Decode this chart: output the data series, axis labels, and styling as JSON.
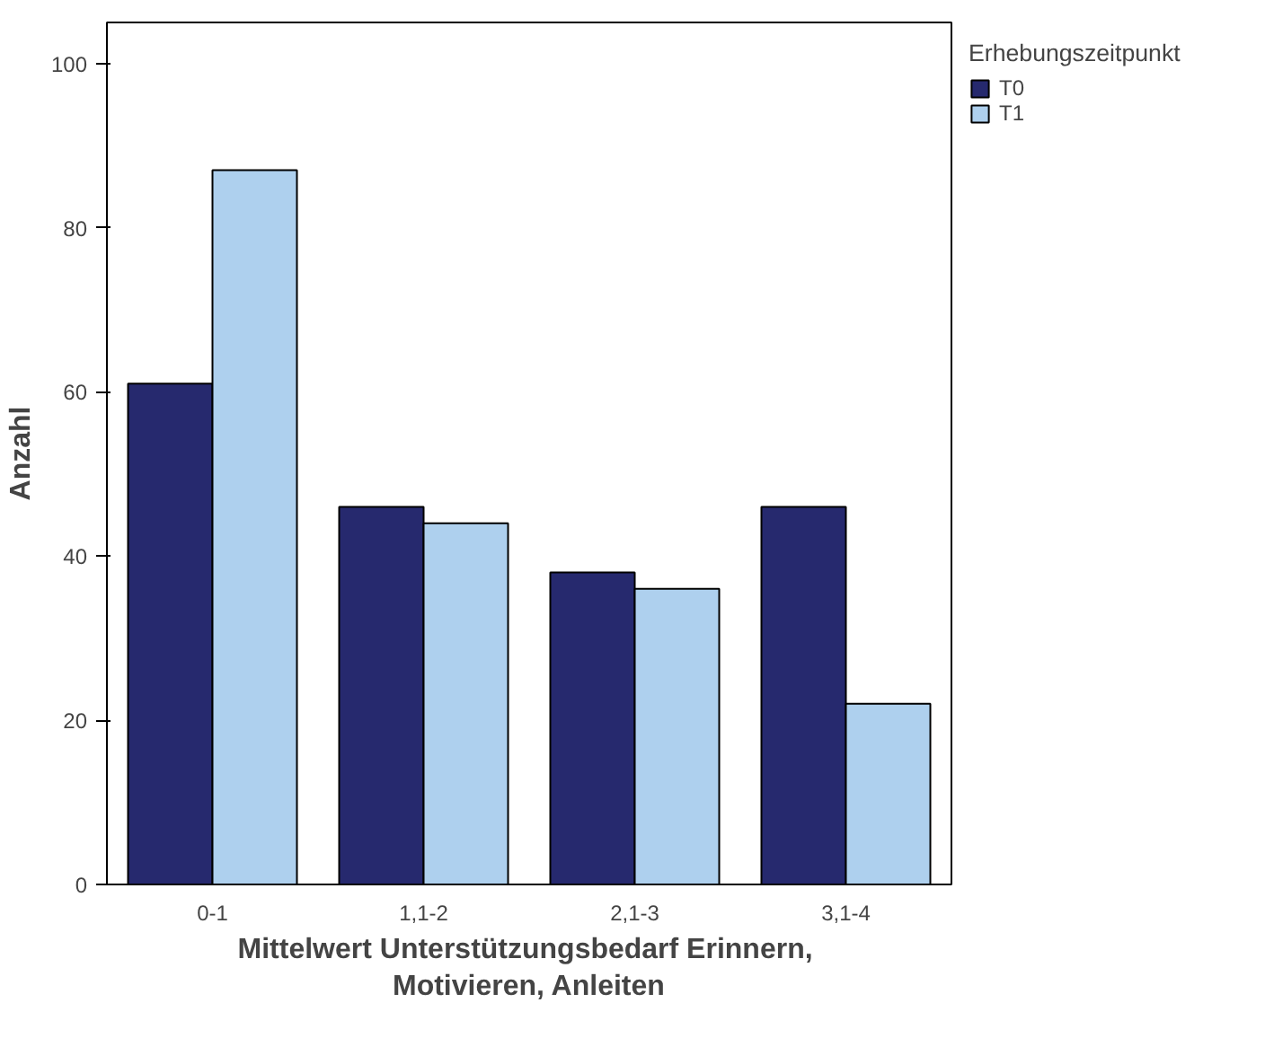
{
  "chart_data": {
    "type": "bar",
    "xlabel": "Mittelwert Unterstützungsbedarf  Erinnern, Motivieren, Anleiten",
    "ylabel": "Anzahl",
    "legend_title": "Erhebungszeitpunkt",
    "categories": [
      "0-1",
      "1,1-2",
      "2,1-3",
      "3,1-4"
    ],
    "series": [
      {
        "name": "T0",
        "color": "#26296e",
        "values": [
          61,
          46,
          38,
          46
        ]
      },
      {
        "name": "T1",
        "color": "#aed0ee",
        "values": [
          87,
          44,
          36,
          22
        ]
      }
    ],
    "ylim": [
      0,
      105
    ],
    "yticks": [
      0,
      20,
      40,
      60,
      80,
      100
    ],
    "grid": false,
    "legend": "right"
  }
}
